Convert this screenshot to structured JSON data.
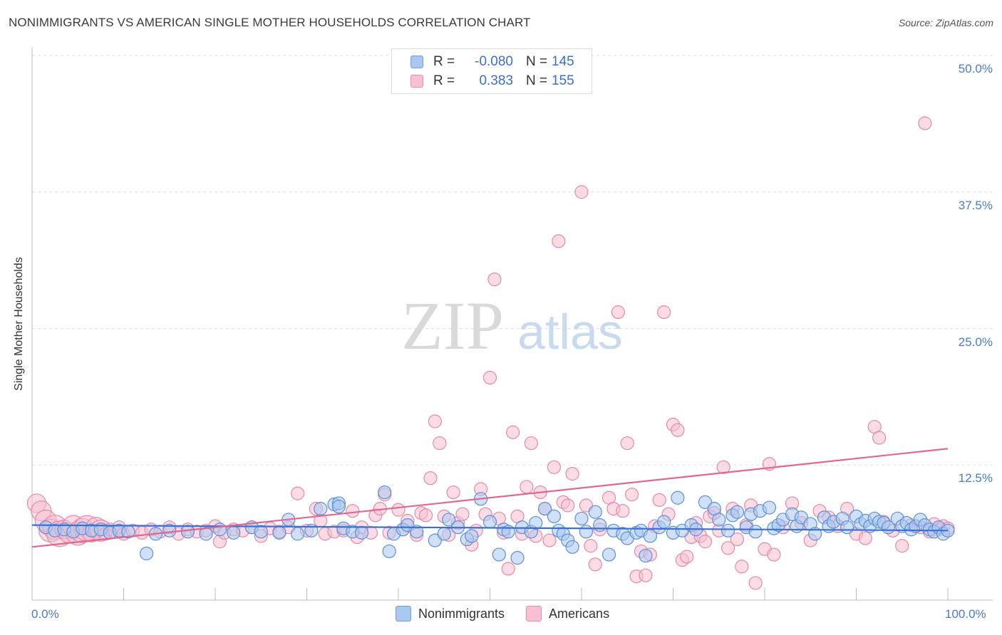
{
  "title": "NONIMMIGRANTS VS AMERICAN SINGLE MOTHER HOUSEHOLDS CORRELATION CHART",
  "source": "Source: ZipAtlas.com",
  "watermark": {
    "zip": "ZIP",
    "atlas": "atlas"
  },
  "legend": {
    "rows": [
      {
        "r_label": "R =",
        "r_value": "-0.080",
        "n_label": "N =",
        "n_value": "145",
        "color": "#a9c8f0",
        "border": "#6f9de0"
      },
      {
        "r_label": "R =",
        "r_value": "0.383",
        "n_label": "N =",
        "n_value": "155",
        "color": "#f8c0d0",
        "border": "#e88aa8"
      }
    ]
  },
  "colors": {
    "blue_fill": "#a9c8f0",
    "blue_stroke": "#5b8fdb",
    "blue_line": "#3a72d0",
    "pink_fill": "#f8c0d0",
    "pink_stroke": "#e48aa8",
    "pink_line": "#e0688f",
    "tick_text": "#4a7bc9",
    "grid": "#dddddd"
  },
  "chart_data": {
    "type": "scatter",
    "title": "NONIMMIGRANTS VS AMERICAN SINGLE MOTHER HOUSEHOLDS CORRELATION CHART",
    "xlabel": "",
    "ylabel": "Single Mother Households",
    "xlim": [
      0,
      100
    ],
    "ylim": [
      0,
      50
    ],
    "x_tick_labels": [
      "0.0%",
      "100.0%"
    ],
    "y_ticks": [
      12.5,
      25.0,
      37.5,
      50.0
    ],
    "y_tick_labels": [
      "12.5%",
      "25.0%",
      "37.5%",
      "50.0%"
    ],
    "grid": true,
    "legend_position": "bottom",
    "series": [
      {
        "name": "Nonimmigrants",
        "trend": {
          "x": [
            0,
            100
          ],
          "y": [
            7.0,
            6.5
          ]
        },
        "points": [
          [
            1.5,
            6.8
          ],
          [
            2.5,
            6.5
          ],
          [
            3.5,
            6.6
          ],
          [
            4.5,
            6.4
          ],
          [
            5.5,
            6.7
          ],
          [
            6.5,
            6.5
          ],
          [
            7.5,
            6.6
          ],
          [
            8.5,
            6.3
          ],
          [
            9.5,
            6.5
          ],
          [
            10.5,
            6.4
          ],
          [
            12.5,
            4.4
          ],
          [
            13.5,
            6.2
          ],
          [
            15,
            6.5
          ],
          [
            17,
            6.4
          ],
          [
            19,
            6.2
          ],
          [
            20.5,
            6.6
          ],
          [
            22,
            6.3
          ],
          [
            24,
            6.8
          ],
          [
            25,
            6.4
          ],
          [
            27,
            6.3
          ],
          [
            28,
            7.5
          ],
          [
            29,
            6.2
          ],
          [
            30.5,
            6.5
          ],
          [
            31.5,
            8.5
          ],
          [
            33,
            8.9
          ],
          [
            33.5,
            9.0
          ],
          [
            33.5,
            8.7
          ],
          [
            34,
            6.7
          ],
          [
            35,
            6.4
          ],
          [
            36,
            6.3
          ],
          [
            38.5,
            10.0
          ],
          [
            39,
            4.6
          ],
          [
            39.5,
            6.2
          ],
          [
            40.5,
            6.6
          ],
          [
            41,
            7.0
          ],
          [
            42,
            6.4
          ],
          [
            44,
            5.6
          ],
          [
            45,
            6.2
          ],
          [
            45.5,
            7.5
          ],
          [
            46.5,
            6.8
          ],
          [
            47.5,
            5.7
          ],
          [
            48,
            6.0
          ],
          [
            49,
            9.4
          ],
          [
            50,
            7.3
          ],
          [
            51,
            4.3
          ],
          [
            51.5,
            6.6
          ],
          [
            52,
            6.4
          ],
          [
            53,
            4.0
          ],
          [
            53.5,
            6.8
          ],
          [
            54.5,
            6.4
          ],
          [
            55,
            7.2
          ],
          [
            56,
            8.5
          ],
          [
            57,
            7.8
          ],
          [
            57.5,
            6.5
          ],
          [
            58,
            6.2
          ],
          [
            58.5,
            5.6
          ],
          [
            59,
            5.0
          ],
          [
            60,
            7.6
          ],
          [
            60.5,
            6.4
          ],
          [
            61.5,
            8.2
          ],
          [
            62,
            7.0
          ],
          [
            63,
            4.3
          ],
          [
            63.5,
            6.5
          ],
          [
            64.5,
            6.2
          ],
          [
            65,
            5.8
          ],
          [
            66,
            6.3
          ],
          [
            66.5,
            6.5
          ],
          [
            67,
            4.2
          ],
          [
            67.5,
            6.0
          ],
          [
            68.5,
            6.8
          ],
          [
            69,
            7.3
          ],
          [
            70,
            6.3
          ],
          [
            70.5,
            9.5
          ],
          [
            71,
            6.5
          ],
          [
            72,
            7.0
          ],
          [
            72.5,
            6.6
          ],
          [
            73.5,
            9.1
          ],
          [
            74.5,
            8.5
          ],
          [
            75,
            7.5
          ],
          [
            76,
            6.5
          ],
          [
            76.5,
            7.9
          ],
          [
            77,
            8.2
          ],
          [
            78,
            6.8
          ],
          [
            78.5,
            8.0
          ],
          [
            79,
            6.4
          ],
          [
            79.5,
            8.3
          ],
          [
            80.5,
            8.6
          ],
          [
            81,
            6.7
          ],
          [
            81.5,
            7.0
          ],
          [
            82,
            7.5
          ],
          [
            83,
            8.0
          ],
          [
            83.5,
            6.9
          ],
          [
            84,
            7.7
          ],
          [
            85,
            7.1
          ],
          [
            85.5,
            6.2
          ],
          [
            86.5,
            7.7
          ],
          [
            87,
            6.9
          ],
          [
            87.5,
            7.3
          ],
          [
            88.5,
            7.6
          ],
          [
            89,
            6.8
          ],
          [
            90,
            7.8
          ],
          [
            90.5,
            7.1
          ],
          [
            91,
            7.4
          ],
          [
            91.5,
            6.9
          ],
          [
            92,
            7.6
          ],
          [
            92.5,
            7.3
          ],
          [
            93,
            7.2
          ],
          [
            93.5,
            6.8
          ],
          [
            94.5,
            7.6
          ],
          [
            95,
            6.9
          ],
          [
            95.5,
            7.2
          ],
          [
            96,
            6.6
          ],
          [
            96.5,
            6.9
          ],
          [
            97,
            7.5
          ],
          [
            97.5,
            7.0
          ],
          [
            98,
            6.6
          ],
          [
            98.5,
            6.4
          ],
          [
            99,
            6.8
          ],
          [
            99.5,
            6.2
          ],
          [
            100,
            6.5
          ]
        ]
      },
      {
        "name": "Americans",
        "trend": {
          "x": [
            0,
            100
          ],
          "y": [
            5.0,
            14.0
          ]
        },
        "points": [
          [
            0.5,
            9.0
          ],
          [
            1,
            8.3
          ],
          [
            1.5,
            7.4
          ],
          [
            2,
            6.5
          ],
          [
            2.5,
            6.8
          ],
          [
            3,
            6.2
          ],
          [
            3.5,
            6.6
          ],
          [
            4,
            6.3
          ],
          [
            4.5,
            6.9
          ],
          [
            5,
            6.2
          ],
          [
            5.5,
            6.5
          ],
          [
            6,
            6.7
          ],
          [
            6.5,
            6.3
          ],
          [
            7,
            6.8
          ],
          [
            7.5,
            6.5
          ],
          [
            8,
            6.2
          ],
          [
            8.5,
            6.6
          ],
          [
            9,
            6.4
          ],
          [
            9.5,
            6.8
          ],
          [
            10,
            6.2
          ],
          [
            11,
            6.5
          ],
          [
            12,
            6.3
          ],
          [
            13,
            6.6
          ],
          [
            14,
            6.4
          ],
          [
            15,
            6.8
          ],
          [
            16,
            6.2
          ],
          [
            17,
            6.6
          ],
          [
            18,
            6.4
          ],
          [
            19,
            6.5
          ],
          [
            20,
            6.9
          ],
          [
            20.5,
            5.5
          ],
          [
            21,
            6.3
          ],
          [
            22,
            6.6
          ],
          [
            23,
            6.5
          ],
          [
            24,
            6.8
          ],
          [
            25,
            6.0
          ],
          [
            26,
            6.7
          ],
          [
            27,
            6.4
          ],
          [
            28,
            6.8
          ],
          [
            29,
            9.9
          ],
          [
            30,
            6.5
          ],
          [
            31,
            8.5
          ],
          [
            31.5,
            7.4
          ],
          [
            32,
            6.2
          ],
          [
            33,
            6.4
          ],
          [
            34,
            6.5
          ],
          [
            35,
            8.3
          ],
          [
            35.5,
            5.9
          ],
          [
            36,
            6.8
          ],
          [
            37,
            6.3
          ],
          [
            37.5,
            7.9
          ],
          [
            38,
            8.5
          ],
          [
            38.5,
            9.8
          ],
          [
            39,
            6.3
          ],
          [
            40,
            8.4
          ],
          [
            40.5,
            6.6
          ],
          [
            41,
            7.4
          ],
          [
            42,
            6.1
          ],
          [
            42.5,
            8.1
          ],
          [
            43,
            7.9
          ],
          [
            43.5,
            11.3
          ],
          [
            44,
            16.5
          ],
          [
            44.5,
            14.5
          ],
          [
            45,
            7.8
          ],
          [
            45.5,
            6.1
          ],
          [
            46,
            10.0
          ],
          [
            46.5,
            7.2
          ],
          [
            47,
            8.0
          ],
          [
            48,
            5.2
          ],
          [
            48.5,
            6.5
          ],
          [
            49,
            10.3
          ],
          [
            49.5,
            8.0
          ],
          [
            50,
            20.5
          ],
          [
            50.5,
            29.5
          ],
          [
            51,
            7.6
          ],
          [
            51.5,
            6.3
          ],
          [
            52,
            3.0
          ],
          [
            52.5,
            15.5
          ],
          [
            53,
            7.8
          ],
          [
            53.5,
            6.2
          ],
          [
            54,
            10.5
          ],
          [
            54.5,
            14.5
          ],
          [
            55,
            6.0
          ],
          [
            55.5,
            10.0
          ],
          [
            56,
            8.5
          ],
          [
            56.5,
            5.6
          ],
          [
            57,
            12.3
          ],
          [
            57.5,
            33.0
          ],
          [
            58,
            9.1
          ],
          [
            58.5,
            8.8
          ],
          [
            59,
            11.7
          ],
          [
            60,
            37.5
          ],
          [
            60.5,
            8.8
          ],
          [
            61,
            5.1
          ],
          [
            61.5,
            3.4
          ],
          [
            62,
            6.6
          ],
          [
            63,
            9.5
          ],
          [
            63.5,
            8.5
          ],
          [
            64,
            26.5
          ],
          [
            64.5,
            8.3
          ],
          [
            65,
            14.5
          ],
          [
            65.5,
            9.8
          ],
          [
            66,
            2.3
          ],
          [
            66.5,
            4.6
          ],
          [
            67,
            2.4
          ],
          [
            67.5,
            4.3
          ],
          [
            68,
            6.9
          ],
          [
            68.5,
            9.3
          ],
          [
            69,
            26.5
          ],
          [
            69.5,
            8.0
          ],
          [
            70,
            16.2
          ],
          [
            70.5,
            15.7
          ],
          [
            71,
            3.8
          ],
          [
            71.5,
            4.1
          ],
          [
            72,
            5.9
          ],
          [
            72.5,
            7.2
          ],
          [
            73,
            6.0
          ],
          [
            73.5,
            5.5
          ],
          [
            74,
            7.8
          ],
          [
            74.5,
            8.1
          ],
          [
            75,
            6.5
          ],
          [
            75.5,
            12.3
          ],
          [
            76,
            4.9
          ],
          [
            76.5,
            8.5
          ],
          [
            77,
            5.7
          ],
          [
            77.5,
            3.2
          ],
          [
            78,
            7.0
          ],
          [
            78.5,
            8.8
          ],
          [
            79,
            1.7
          ],
          [
            80,
            4.8
          ],
          [
            80.5,
            12.6
          ],
          [
            81,
            4.3
          ],
          [
            82,
            6.8
          ],
          [
            83,
            9.0
          ],
          [
            84,
            7.2
          ],
          [
            85,
            5.6
          ],
          [
            86,
            8.3
          ],
          [
            87,
            7.7
          ],
          [
            88,
            6.9
          ],
          [
            89,
            8.5
          ],
          [
            90,
            6.2
          ],
          [
            91,
            5.8
          ],
          [
            92,
            16.0
          ],
          [
            92.5,
            15.0
          ],
          [
            93,
            7.3
          ],
          [
            94,
            6.5
          ],
          [
            95,
            5.1
          ],
          [
            96,
            7.0
          ],
          [
            97,
            6.8
          ],
          [
            97.5,
            43.8
          ],
          [
            98,
            6.4
          ],
          [
            98.5,
            7.1
          ],
          [
            99,
            6.6
          ],
          [
            99.5,
            6.9
          ],
          [
            100,
            6.7
          ]
        ]
      }
    ]
  }
}
